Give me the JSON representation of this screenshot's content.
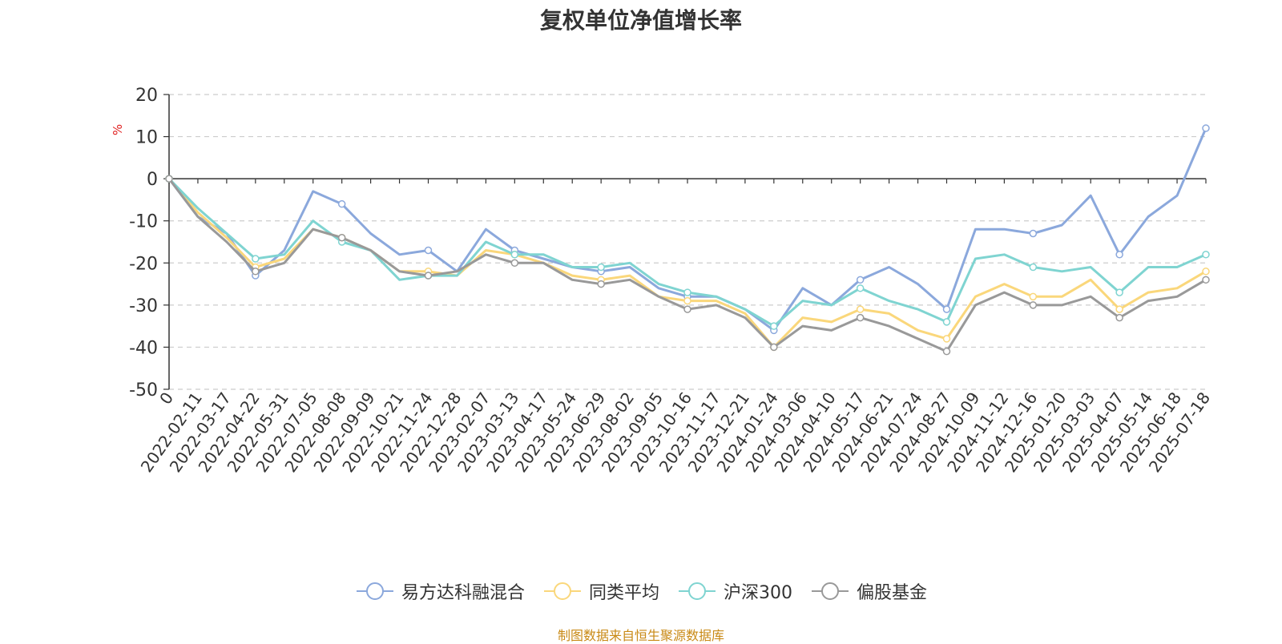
{
  "chart_data": {
    "type": "line",
    "title": "复权单位净值增长率",
    "ylabel": "%",
    "ylim": [
      -50,
      20
    ],
    "yticks": [
      20,
      10,
      0,
      -10,
      -20,
      -30,
      -40,
      -50
    ],
    "grid": true,
    "legend_position": "bottom",
    "categories": [
      "0",
      "2022-02-11",
      "2022-03-17",
      "2022-04-22",
      "2022-05-31",
      "2022-07-05",
      "2022-08-08",
      "2022-09-09",
      "2022-10-21",
      "2022-11-24",
      "2022-12-28",
      "2023-02-07",
      "2023-03-13",
      "2023-04-17",
      "2023-05-24",
      "2023-06-29",
      "2023-08-02",
      "2023-09-05",
      "2023-10-16",
      "2023-11-17",
      "2023-12-21",
      "2024-01-24",
      "2024-03-06",
      "2024-04-10",
      "2024-05-17",
      "2024-06-21",
      "2024-07-24",
      "2024-08-27",
      "2024-10-09",
      "2024-11-12",
      "2024-12-16",
      "2025-01-20",
      "2025-03-03",
      "2025-04-07",
      "2025-05-14",
      "2025-06-18",
      "2025-07-18"
    ],
    "series": [
      {
        "name": "易方达科融混合",
        "color": "#8ba8dc",
        "values": [
          0,
          -9,
          -13,
          -23,
          -17,
          -3,
          -6,
          -13,
          -18,
          -17,
          -22,
          -12,
          -17,
          -19,
          -21,
          -22,
          -21,
          -26,
          -28,
          -28,
          -31,
          -36,
          -26,
          -30,
          -24,
          -21,
          -25,
          -31,
          -12,
          -12,
          -13,
          -11,
          -4,
          -18,
          -9,
          -4,
          12
        ]
      },
      {
        "name": "同类平均",
        "color": "#fad77b",
        "values": [
          0,
          -8,
          -14,
          -21,
          -19,
          -12,
          -14,
          -17,
          -22,
          -22,
          -23,
          -17,
          -18,
          -20,
          -23,
          -24,
          -23,
          -28,
          -29,
          -29,
          -32,
          -40,
          -33,
          -34,
          -31,
          -32,
          -36,
          -38,
          -28,
          -25,
          -28,
          -28,
          -24,
          -31,
          -27,
          -26,
          -22
        ]
      },
      {
        "name": "沪深300",
        "color": "#7fd4d1",
        "values": [
          0,
          -7,
          -13,
          -19,
          -18,
          -10,
          -15,
          -17,
          -24,
          -23,
          -23,
          -15,
          -18,
          -18,
          -21,
          -21,
          -20,
          -25,
          -27,
          -28,
          -31,
          -35,
          -29,
          -30,
          -26,
          -29,
          -31,
          -34,
          -19,
          -18,
          -21,
          -22,
          -21,
          -27,
          -21,
          -21,
          -18
        ]
      },
      {
        "name": "偏股基金",
        "color": "#999999",
        "values": [
          0,
          -9,
          -15,
          -22,
          -20,
          -12,
          -14,
          -17,
          -22,
          -23,
          -22,
          -18,
          -20,
          -20,
          -24,
          -25,
          -24,
          -28,
          -31,
          -30,
          -33,
          -40,
          -35,
          -36,
          -33,
          -35,
          -38,
          -41,
          -30,
          -27,
          -30,
          -30,
          -28,
          -33,
          -29,
          -28,
          -24
        ]
      }
    ]
  },
  "source_note": "制图数据来自恒生聚源数据库"
}
